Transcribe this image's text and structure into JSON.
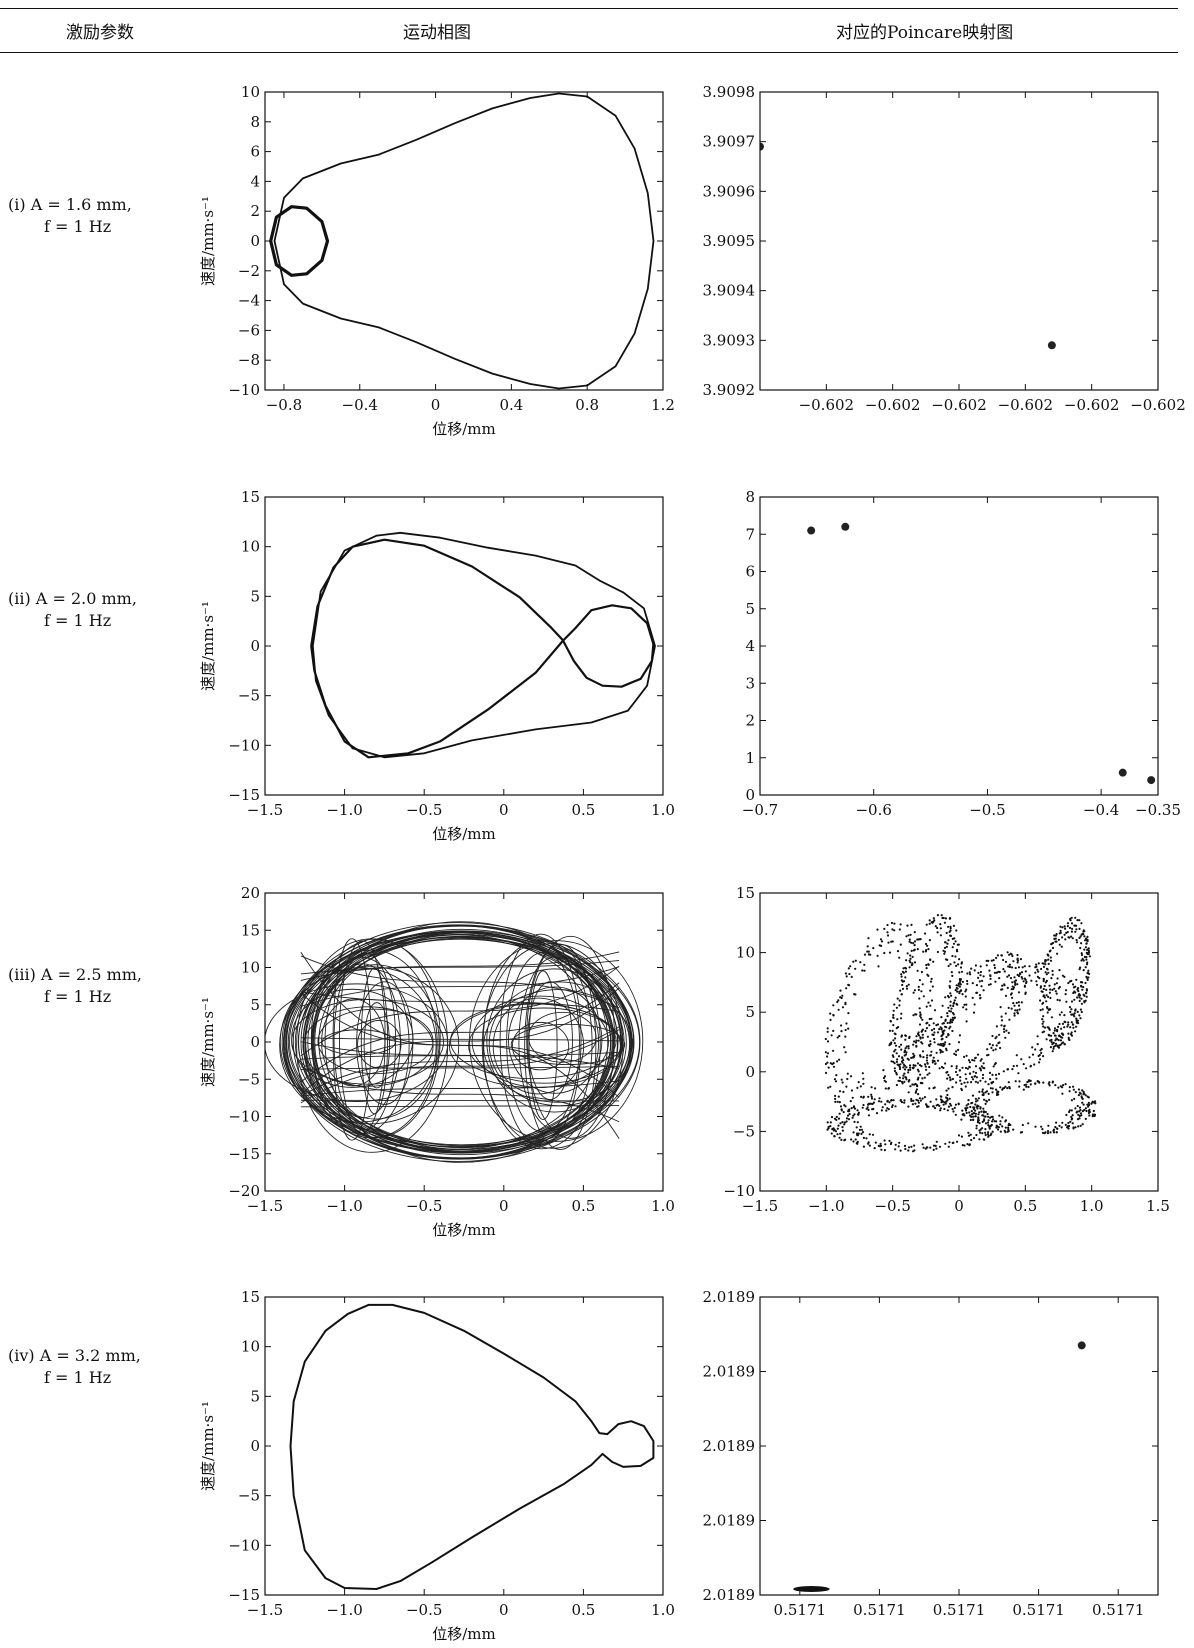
{
  "header": {
    "col1": "激励参数",
    "col2": "运动相图",
    "col3": "对应的Poincare映射图"
  },
  "rows": [
    {
      "label_line1": "(i) A = 1.6 mm,",
      "label_line2": "f = 1 Hz"
    },
    {
      "label_line1": "(ii) A = 2.0 mm,",
      "label_line2": "f = 1 Hz"
    },
    {
      "label_line1": "(iii) A = 2.5 mm,",
      "label_line2": "f = 1 Hz"
    },
    {
      "label_line1": "(iv) A = 3.2 mm,",
      "label_line2": "f = 1 Hz"
    }
  ],
  "chart_data": [
    {
      "id": "phase1",
      "type": "line",
      "xlabel": "位移/mm",
      "ylabel": "速度/mm·s⁻¹",
      "xlim": [
        -0.9,
        1.2
      ],
      "ylim": [
        -10,
        10
      ],
      "xticks": [
        {
          "v": -0.8,
          "t": "−0.8"
        },
        {
          "v": -0.4,
          "t": "−0.4"
        },
        {
          "v": 0,
          "t": "0"
        },
        {
          "v": 0.4,
          "t": "0.4"
        },
        {
          "v": 0.8,
          "t": "0.8"
        },
        {
          "v": 1.2,
          "t": "1.2"
        }
      ],
      "yticks": [
        {
          "v": 10,
          "t": "10"
        },
        {
          "v": 8,
          "t": "8"
        },
        {
          "v": 6,
          "t": "6"
        },
        {
          "v": 4,
          "t": "4"
        },
        {
          "v": 2,
          "t": "2"
        },
        {
          "v": 0,
          "t": "0"
        },
        {
          "v": -2,
          "t": "−2"
        },
        {
          "v": -4,
          "t": "−4"
        },
        {
          "v": -6,
          "t": "−6"
        },
        {
          "v": -8,
          "t": "−8"
        },
        {
          "v": -10,
          "t": "−10"
        }
      ],
      "series": [
        {
          "closed": true,
          "width": 1.8,
          "points": [
            [
              -0.85,
              0
            ],
            [
              -0.8,
              2.9
            ],
            [
              -0.7,
              4.2
            ],
            [
              -0.5,
              5.2
            ],
            [
              -0.3,
              5.8
            ],
            [
              -0.1,
              6.8
            ],
            [
              0.1,
              7.9
            ],
            [
              0.3,
              8.9
            ],
            [
              0.5,
              9.6
            ],
            [
              0.65,
              9.9
            ],
            [
              0.8,
              9.7
            ],
            [
              0.95,
              8.4
            ],
            [
              1.05,
              6.2
            ],
            [
              1.12,
              3.2
            ],
            [
              1.15,
              0
            ],
            [
              1.12,
              -3.2
            ],
            [
              1.05,
              -6.2
            ],
            [
              0.95,
              -8.4
            ],
            [
              0.8,
              -9.7
            ],
            [
              0.65,
              -9.9
            ],
            [
              0.5,
              -9.6
            ],
            [
              0.3,
              -8.9
            ],
            [
              0.1,
              -7.9
            ],
            [
              -0.1,
              -6.8
            ],
            [
              -0.3,
              -5.8
            ],
            [
              -0.5,
              -5.2
            ],
            [
              -0.7,
              -4.2
            ],
            [
              -0.8,
              -2.9
            ]
          ]
        },
        {
          "closed": true,
          "width": 3.2,
          "points": [
            [
              -0.87,
              0
            ],
            [
              -0.84,
              1.6
            ],
            [
              -0.76,
              2.3
            ],
            [
              -0.68,
              2.2
            ],
            [
              -0.6,
              1.3
            ],
            [
              -0.57,
              0
            ],
            [
              -0.6,
              -1.3
            ],
            [
              -0.68,
              -2.2
            ],
            [
              -0.76,
              -2.3
            ],
            [
              -0.84,
              -1.6
            ]
          ]
        }
      ]
    },
    {
      "id": "poin1",
      "type": "scatter",
      "xlim": [
        0,
        6
      ],
      "ylim": [
        3.9092,
        3.9098
      ],
      "xticks": [
        {
          "v": 1,
          "t": "−0.602"
        },
        {
          "v": 2,
          "t": "−0.602"
        },
        {
          "v": 3,
          "t": "−0.602"
        },
        {
          "v": 4,
          "t": "−0.602"
        },
        {
          "v": 5,
          "t": "−0.602"
        },
        {
          "v": 6,
          "t": "−0.602"
        }
      ],
      "yticks": [
        {
          "v": 3.9098,
          "t": "3.9098"
        },
        {
          "v": 3.9097,
          "t": "3.9097"
        },
        {
          "v": 3.9096,
          "t": "3.9096"
        },
        {
          "v": 3.9095,
          "t": "3.9095"
        },
        {
          "v": 3.9094,
          "t": "3.9094"
        },
        {
          "v": 3.9093,
          "t": "3.9093"
        },
        {
          "v": 3.9092,
          "t": "3.9092"
        }
      ],
      "points": [
        [
          0.0,
          3.90969
        ],
        [
          4.4,
          3.90929
        ]
      ]
    },
    {
      "id": "phase2",
      "type": "line",
      "xlabel": "位移/mm",
      "ylabel": "速度/mm·s⁻¹",
      "xlim": [
        -1.5,
        1.0
      ],
      "ylim": [
        -15,
        15
      ],
      "xticks": [
        {
          "v": -1.5,
          "t": "−1.5"
        },
        {
          "v": -1.0,
          "t": "−1.0"
        },
        {
          "v": -0.5,
          "t": "−0.5"
        },
        {
          "v": 0,
          "t": "0"
        },
        {
          "v": 0.5,
          "t": "0.5"
        },
        {
          "v": 1.0,
          "t": "1.0"
        }
      ],
      "yticks": [
        {
          "v": 15,
          "t": "15"
        },
        {
          "v": 10,
          "t": "10"
        },
        {
          "v": 5,
          "t": "5"
        },
        {
          "v": 0,
          "t": "0"
        },
        {
          "v": -5,
          "t": "−5"
        },
        {
          "v": -10,
          "t": "−10"
        },
        {
          "v": -15,
          "t": "−15"
        }
      ],
      "series": [
        {
          "closed": true,
          "width": 1.8,
          "points": [
            [
              -1.2,
              0
            ],
            [
              -1.15,
              5.5
            ],
            [
              -1.0,
              9.6
            ],
            [
              -0.8,
              11.1
            ],
            [
              -0.65,
              11.4
            ],
            [
              -0.4,
              10.9
            ],
            [
              -0.1,
              9.9
            ],
            [
              0.2,
              9.1
            ],
            [
              0.45,
              8.1
            ],
            [
              0.6,
              6.6
            ],
            [
              0.75,
              5.4
            ],
            [
              0.88,
              3.8
            ],
            [
              0.95,
              0
            ],
            [
              0.9,
              -4
            ],
            [
              0.78,
              -6.5
            ],
            [
              0.55,
              -7.7
            ],
            [
              0.2,
              -8.4
            ],
            [
              -0.2,
              -9.5
            ],
            [
              -0.5,
              -10.8
            ],
            [
              -0.75,
              -11.2
            ],
            [
              -0.95,
              -10.3
            ],
            [
              -1.1,
              -7
            ],
            [
              -1.18,
              -3.5
            ]
          ]
        },
        {
          "closed": false,
          "width": 2.2,
          "points": [
            [
              -1.21,
              0
            ],
            [
              -1.17,
              4
            ],
            [
              -1.07,
              7.9
            ],
            [
              -0.95,
              10.0
            ],
            [
              -0.75,
              10.7
            ],
            [
              -0.5,
              10.1
            ],
            [
              -0.2,
              8
            ],
            [
              0.1,
              4.9
            ],
            [
              0.3,
              1.8
            ],
            [
              0.37,
              0.6
            ],
            [
              0.44,
              -1.5
            ],
            [
              0.52,
              -3.2
            ],
            [
              0.62,
              -4.0
            ],
            [
              0.74,
              -4.1
            ],
            [
              0.86,
              -3.3
            ],
            [
              0.93,
              -1.5
            ],
            [
              0.94,
              0.2
            ],
            [
              0.9,
              2.3
            ],
            [
              0.8,
              3.8
            ],
            [
              0.68,
              4.1
            ],
            [
              0.55,
              3.6
            ],
            [
              0.45,
              1.8
            ],
            [
              0.37,
              0.5
            ],
            [
              0.2,
              -2.7
            ],
            [
              -0.1,
              -6.4
            ],
            [
              -0.4,
              -9.6
            ],
            [
              -0.6,
              -10.8
            ],
            [
              -0.85,
              -11.2
            ],
            [
              -1.0,
              -9.6
            ],
            [
              -1.12,
              -6
            ],
            [
              -1.19,
              -2.5
            ],
            [
              -1.21,
              0
            ]
          ]
        }
      ]
    },
    {
      "id": "poin2",
      "type": "scatter",
      "xlim": [
        -0.7,
        -0.35
      ],
      "ylim": [
        0,
        8
      ],
      "xticks": [
        {
          "v": -0.7,
          "t": "−0.7"
        },
        {
          "v": -0.6,
          "t": "−0.6"
        },
        {
          "v": -0.5,
          "t": "−0.5"
        },
        {
          "v": -0.4,
          "t": "−0.4"
        },
        {
          "v": -0.35,
          "t": "−0.35"
        }
      ],
      "yticks": [
        {
          "v": 8,
          "t": "8"
        },
        {
          "v": 7,
          "t": "7"
        },
        {
          "v": 6,
          "t": "6"
        },
        {
          "v": 5,
          "t": "5"
        },
        {
          "v": 4,
          "t": "4"
        },
        {
          "v": 3,
          "t": "3"
        },
        {
          "v": 2,
          "t": "2"
        },
        {
          "v": 1,
          "t": "1"
        },
        {
          "v": 0,
          "t": "0"
        }
      ],
      "points": [
        [
          -0.655,
          7.1
        ],
        [
          -0.625,
          7.2
        ],
        [
          -0.381,
          0.6
        ],
        [
          -0.356,
          0.4
        ]
      ]
    },
    {
      "id": "phase3",
      "type": "line",
      "xlabel": "位移/mm",
      "ylabel": "速度/mm·s⁻¹",
      "xlim": [
        -1.5,
        1.0
      ],
      "ylim": [
        -20,
        20
      ],
      "xticks": [
        {
          "v": -1.5,
          "t": "−1.5"
        },
        {
          "v": -1.0,
          "t": "−1.0"
        },
        {
          "v": -0.5,
          "t": "−0.5"
        },
        {
          "v": 0,
          "t": "0"
        },
        {
          "v": 0.5,
          "t": "0.5"
        },
        {
          "v": 1.0,
          "t": "1.0"
        }
      ],
      "yticks": [
        {
          "v": 20,
          "t": "20"
        },
        {
          "v": 15,
          "t": "15"
        },
        {
          "v": 10,
          "t": "10"
        },
        {
          "v": 5,
          "t": "5"
        },
        {
          "v": 0,
          "t": "0"
        },
        {
          "v": -5,
          "t": "−5"
        },
        {
          "v": -10,
          "t": "−10"
        },
        {
          "v": -15,
          "t": "−15"
        },
        {
          "v": -20,
          "t": "−20"
        }
      ],
      "chaotic": {
        "x_range": [
          -1.4,
          0.85
        ],
        "v_range": [
          -16.5,
          16.5
        ],
        "centers": [
          -0.85,
          0.3
        ]
      }
    },
    {
      "id": "poin3",
      "type": "scatter",
      "xlim": [
        -1.5,
        1.5
      ],
      "ylim": [
        -10,
        15
      ],
      "xticks": [
        {
          "v": -1.5,
          "t": "−1.5"
        },
        {
          "v": -1.0,
          "t": "−1.0"
        },
        {
          "v": -0.5,
          "t": "−0.5"
        },
        {
          "v": 0,
          "t": "0"
        },
        {
          "v": 0.5,
          "t": "0.5"
        },
        {
          "v": 1.0,
          "t": "1.0"
        },
        {
          "v": 1.5,
          "t": "1.5"
        }
      ],
      "yticks": [
        {
          "v": 15,
          "t": "15"
        },
        {
          "v": 10,
          "t": "10"
        },
        {
          "v": 5,
          "t": "5"
        },
        {
          "v": 0,
          "t": "0"
        },
        {
          "v": -5,
          "t": "−5"
        },
        {
          "v": -10,
          "t": "−10"
        }
      ],
      "attractor": {
        "x_range": [
          -1.05,
          1.05
        ],
        "y_range": [
          -7.2,
          13.6
        ]
      }
    },
    {
      "id": "phase4",
      "type": "line",
      "xlabel": "位移/mm",
      "ylabel": "速度/mm·s⁻¹",
      "xlim": [
        -1.5,
        1.0
      ],
      "ylim": [
        -15,
        15
      ],
      "xticks": [
        {
          "v": -1.5,
          "t": "−1.5"
        },
        {
          "v": -1.0,
          "t": "−1.0"
        },
        {
          "v": -0.5,
          "t": "−0.5"
        },
        {
          "v": 0,
          "t": "0"
        },
        {
          "v": 0.5,
          "t": "0.5"
        },
        {
          "v": 1.0,
          "t": "1.0"
        }
      ],
      "yticks": [
        {
          "v": 15,
          "t": "15"
        },
        {
          "v": 10,
          "t": "10"
        },
        {
          "v": 5,
          "t": "5"
        },
        {
          "v": 0,
          "t": "0"
        },
        {
          "v": -5,
          "t": "−5"
        },
        {
          "v": -10,
          "t": "−10"
        },
        {
          "v": -15,
          "t": "−15"
        }
      ],
      "series": [
        {
          "closed": true,
          "width": 2.0,
          "points": [
            [
              -1.34,
              0
            ],
            [
              -1.32,
              4.5
            ],
            [
              -1.25,
              8.5
            ],
            [
              -1.12,
              11.6
            ],
            [
              -0.98,
              13.3
            ],
            [
              -0.85,
              14.2
            ],
            [
              -0.7,
              14.2
            ],
            [
              -0.5,
              13.4
            ],
            [
              -0.25,
              11.6
            ],
            [
              0.0,
              9.3
            ],
            [
              0.25,
              6.9
            ],
            [
              0.45,
              4.5
            ],
            [
              0.55,
              2.5
            ],
            [
              0.6,
              1.3
            ],
            [
              0.65,
              1.2
            ],
            [
              0.72,
              2.2
            ],
            [
              0.8,
              2.5
            ],
            [
              0.88,
              2.0
            ],
            [
              0.94,
              0.5
            ],
            [
              0.94,
              -1.2
            ],
            [
              0.86,
              -2.0
            ],
            [
              0.75,
              -2.1
            ],
            [
              0.68,
              -1.6
            ],
            [
              0.62,
              -0.8
            ],
            [
              0.55,
              -1.9
            ],
            [
              0.38,
              -3.8
            ],
            [
              0.1,
              -6.3
            ],
            [
              -0.2,
              -9.2
            ],
            [
              -0.45,
              -11.7
            ],
            [
              -0.65,
              -13.6
            ],
            [
              -0.8,
              -14.4
            ],
            [
              -1.0,
              -14.3
            ],
            [
              -1.12,
              -13.3
            ],
            [
              -1.25,
              -10.5
            ],
            [
              -1.32,
              -5
            ]
          ]
        }
      ]
    },
    {
      "id": "poin4",
      "type": "scatter",
      "xlim": [
        0,
        6
      ],
      "ylim": [
        0,
        4
      ],
      "xticks": [
        {
          "v": 0.6,
          "t": "0.5171"
        },
        {
          "v": 1.8,
          "t": "0.5171"
        },
        {
          "v": 3.0,
          "t": "0.5171"
        },
        {
          "v": 4.2,
          "t": "0.5171"
        },
        {
          "v": 5.4,
          "t": "0.5171"
        }
      ],
      "yticks": [
        {
          "v": 4,
          "t": "2.0189"
        },
        {
          "v": 3,
          "t": "2.0189"
        },
        {
          "v": 2,
          "t": "2.0189"
        },
        {
          "v": 1,
          "t": "2.0189"
        },
        {
          "v": 0,
          "t": "2.0189"
        }
      ],
      "points": [
        [
          4.85,
          3.35
        ]
      ],
      "cluster": {
        "x_range": [
          0.5,
          1.05
        ],
        "y": 0.08
      }
    }
  ]
}
